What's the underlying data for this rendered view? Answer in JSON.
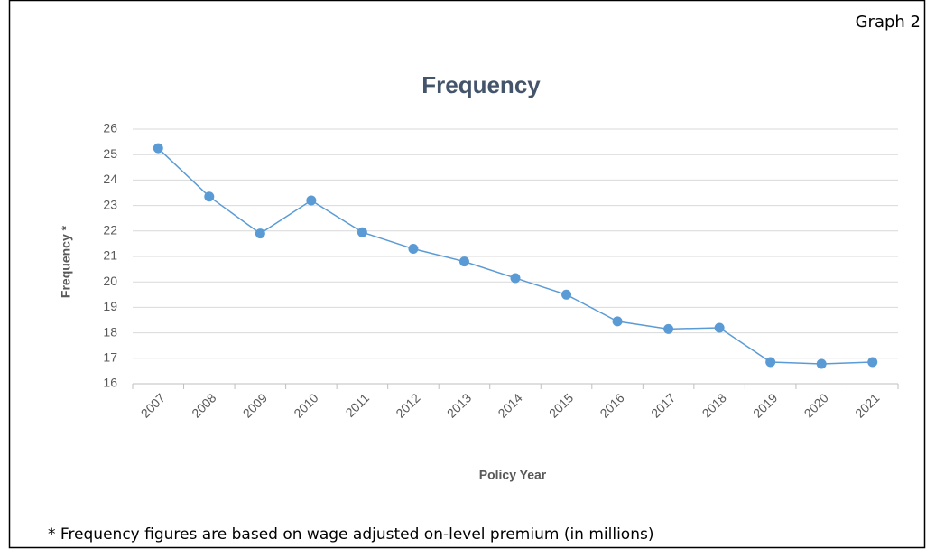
{
  "chart_data": {
    "type": "line",
    "title": "Frequency",
    "corner_label": "Graph 2",
    "footnote": "* Frequency figures are based on wage adjusted on-level premium (in millions)",
    "x_label": "Policy Year",
    "y_label": "Frequency *",
    "categories": [
      "2007",
      "2008",
      "2009",
      "2010",
      "2011",
      "2012",
      "2013",
      "2014",
      "2015",
      "2016",
      "2017",
      "2018",
      "2019",
      "2020",
      "2021"
    ],
    "series": [
      {
        "name": "Frequency",
        "color": "#5b9bd5",
        "values": [
          25.25,
          23.35,
          21.9,
          23.2,
          21.95,
          21.3,
          20.8,
          20.15,
          19.5,
          18.45,
          18.15,
          18.2,
          16.85,
          16.78,
          16.85
        ]
      }
    ],
    "ylim": [
      16,
      26
    ],
    "yticks": [
      16,
      17,
      18,
      19,
      20,
      21,
      22,
      23,
      24,
      25,
      26
    ],
    "grid": true
  }
}
